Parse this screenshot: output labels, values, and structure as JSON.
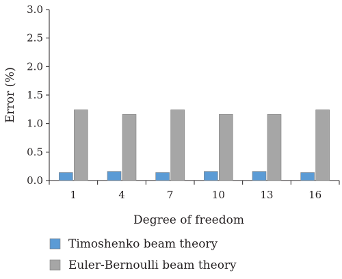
{
  "chart_data": {
    "type": "bar",
    "xlabel": "Degree of freedom",
    "ylabel": "Error (%)",
    "categories": [
      "1",
      "4",
      "7",
      "10",
      "13",
      "16"
    ],
    "ylim": [
      0,
      3.0
    ],
    "yticks": [
      "0.0",
      "0.5",
      "1.0",
      "1.5",
      "2.0",
      "2.5",
      "3.0"
    ],
    "grid": false,
    "legend_position": "bottom",
    "series": [
      {
        "name": "Timoshenko beam theory",
        "color": "#5b9bd5",
        "values": [
          0.14,
          0.16,
          0.14,
          0.16,
          0.16,
          0.14
        ]
      },
      {
        "name": "Euler-Bernoulli beam theory",
        "color": "#a6a6a6",
        "values": [
          1.24,
          1.16,
          1.24,
          1.16,
          1.16,
          1.24
        ]
      }
    ]
  }
}
